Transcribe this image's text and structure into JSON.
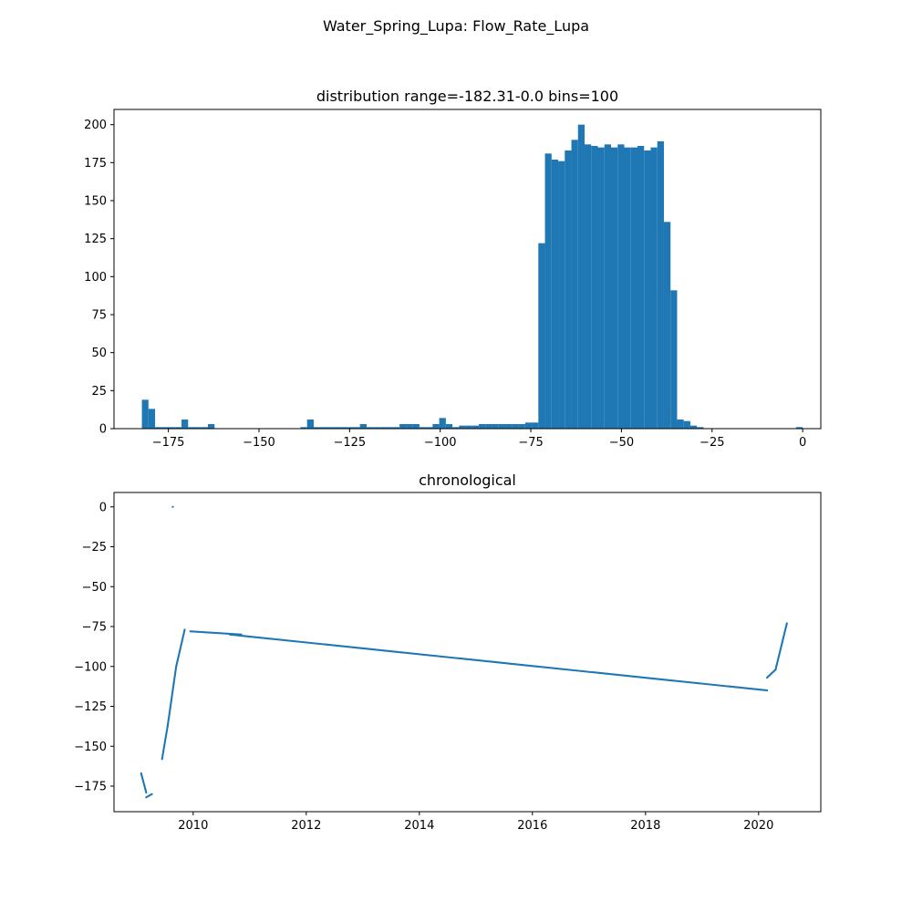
{
  "figure": {
    "suptitle": "Water_Spring_Lupa: Flow_Rate_Lupa"
  },
  "chart_data": [
    {
      "type": "bar",
      "subtype": "histogram",
      "title": "distribution range=-182.31-0.0 bins=100",
      "xlabel": "",
      "ylabel": "",
      "color": "#1f77b4",
      "bin_start": -182.31,
      "bin_end": 0.0,
      "bins": 100,
      "xlim": [
        -190,
        5
      ],
      "ylim": [
        0,
        210
      ],
      "xticks": [
        -175,
        -150,
        -125,
        -100,
        -75,
        -50,
        -25,
        0
      ],
      "xtick_labels": [
        "−175",
        "−150",
        "−125",
        "−100",
        "−75",
        "−50",
        "−25",
        "0"
      ],
      "yticks": [
        0,
        25,
        50,
        75,
        100,
        125,
        150,
        175,
        200
      ],
      "ytick_labels": [
        "0",
        "25",
        "50",
        "75",
        "100",
        "125",
        "150",
        "175",
        "200"
      ],
      "counts": [
        19,
        13,
        1,
        1,
        1,
        1,
        6,
        1,
        1,
        1,
        3,
        0,
        0,
        0,
        0,
        0,
        0,
        0,
        0,
        0,
        0,
        0,
        0,
        0,
        1,
        6,
        1,
        1,
        1,
        1,
        1,
        1,
        1,
        3,
        1,
        1,
        1,
        1,
        1,
        3,
        3,
        3,
        1,
        1,
        3,
        7,
        3,
        1,
        2,
        2,
        2,
        3,
        3,
        3,
        3,
        3,
        3,
        3,
        4,
        4,
        122,
        181,
        177,
        176,
        183,
        190,
        200,
        187,
        186,
        185,
        187,
        185,
        187,
        185,
        185,
        186,
        183,
        185,
        189,
        136,
        91,
        6,
        5,
        2,
        1,
        0,
        0,
        0,
        0,
        0,
        0,
        0,
        0,
        0,
        0,
        0,
        0,
        0,
        0,
        1
      ]
    },
    {
      "type": "scatter",
      "title": "chronological",
      "xlabel": "",
      "ylabel": "",
      "color": "#1f77b4",
      "xlim": [
        2008.6,
        2021.1
      ],
      "ylim": [
        -191,
        9
      ],
      "xticks": [
        2010,
        2012,
        2014,
        2016,
        2018,
        2020
      ],
      "xtick_labels": [
        "2010",
        "2012",
        "2014",
        "2016",
        "2018",
        "2020"
      ],
      "yticks": [
        0,
        -25,
        -50,
        -75,
        -100,
        -125,
        -150,
        -175
      ],
      "ytick_labels": [
        "0",
        "−25",
        "−50",
        "−75",
        "−100",
        "−125",
        "−150",
        "−175"
      ],
      "segments": [
        {
          "x": [
            2009.08,
            2009.17
          ],
          "y": [
            -167,
            -179
          ]
        },
        {
          "x": [
            2009.17,
            2009.27
          ],
          "y": [
            -182,
            -180
          ]
        },
        {
          "x": [
            2009.45,
            2009.55
          ],
          "y": [
            -158,
            -137
          ]
        },
        {
          "x": [
            2009.55,
            2009.7
          ],
          "y": [
            -137,
            -100
          ]
        },
        {
          "x": [
            2009.7,
            2009.85
          ],
          "y": [
            -100,
            -77
          ]
        },
        {
          "x": [
            2009.95,
            2010.85
          ],
          "y": [
            -78,
            -80
          ]
        },
        {
          "x": [
            2010.65,
            2020.15
          ],
          "y": [
            -80,
            -115
          ]
        },
        {
          "x": [
            2020.15,
            2020.3
          ],
          "y": [
            -107,
            -102
          ]
        },
        {
          "x": [
            2020.3,
            2020.5
          ],
          "y": [
            -102,
            -73
          ]
        }
      ],
      "points": [
        {
          "x": 2009.64,
          "y": 0
        }
      ]
    }
  ]
}
